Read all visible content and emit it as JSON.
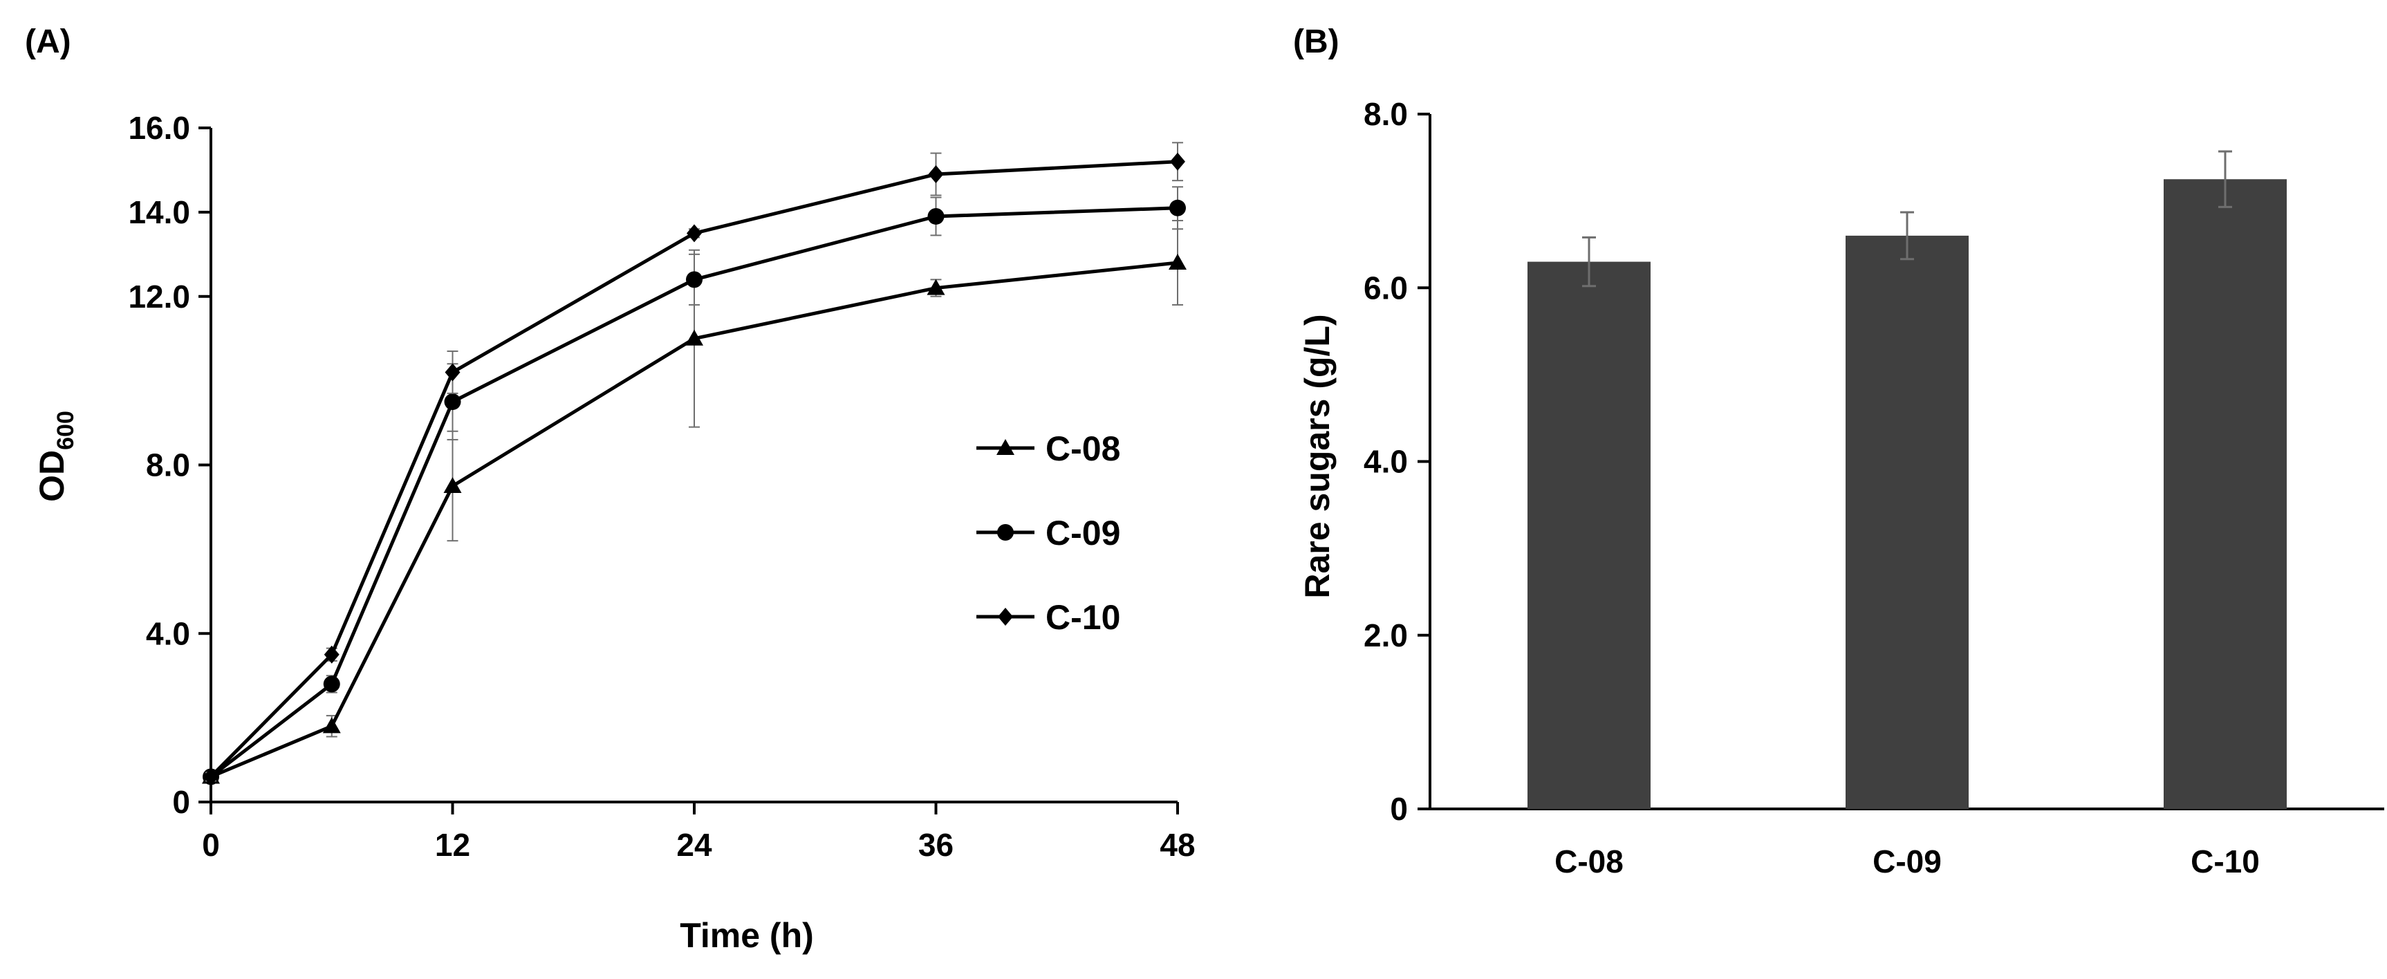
{
  "colors": {
    "line": "#000000",
    "bar": "#404040",
    "errorbar": "#6e6e6e"
  },
  "chart_data": [
    {
      "panel_label": "(A)",
      "type": "line",
      "xlabel": "Time (h)",
      "ylabel_main": "OD",
      "ylabel_sub": "600",
      "x": [
        0,
        6,
        12,
        24,
        36,
        48
      ],
      "xlim": [
        0,
        48
      ],
      "ylim": [
        0,
        16
      ],
      "x_ticks": [
        0,
        12,
        24,
        36,
        48
      ],
      "x_tick_labels": [
        "0",
        "12",
        "24",
        "36",
        "48"
      ],
      "y_ticks": [
        0,
        4,
        8,
        12,
        14,
        16
      ],
      "y_tick_labels": [
        "0",
        "4.0",
        "8.0",
        "12.0",
        "14.0",
        "16.0"
      ],
      "grid": false,
      "legend_position": "right",
      "series": [
        {
          "name": "C-08",
          "marker": "triangle",
          "values": [
            0.6,
            1.8,
            7.5,
            11.0,
            12.2,
            12.8
          ],
          "errors": [
            0.1,
            0.25,
            1.3,
            2.1,
            0.2,
            1.0
          ]
        },
        {
          "name": "C-09",
          "marker": "circle",
          "values": [
            0.6,
            2.8,
            9.5,
            12.4,
            13.9,
            14.1
          ],
          "errors": [
            0.1,
            0.2,
            0.9,
            0.6,
            0.45,
            0.5
          ]
        },
        {
          "name": "C-10",
          "marker": "diamond",
          "values": [
            0.6,
            3.5,
            10.2,
            13.5,
            14.9,
            15.2
          ],
          "errors": [
            0.1,
            0.15,
            0.5,
            0.1,
            0.5,
            0.45
          ]
        }
      ]
    },
    {
      "panel_label": "(B)",
      "type": "bar",
      "xlabel": "",
      "ylabel": "Rare sugars (g/L)",
      "categories": [
        "C-08",
        "C-09",
        "C-10"
      ],
      "values": [
        6.3,
        6.6,
        7.25
      ],
      "errors": [
        0.28,
        0.27,
        0.32
      ],
      "ylim": [
        0,
        8
      ],
      "y_ticks": [
        0,
        2,
        4,
        6,
        8
      ],
      "y_tick_labels": [
        "0",
        "2.0",
        "4.0",
        "6.0",
        "8.0"
      ],
      "grid": false
    }
  ]
}
